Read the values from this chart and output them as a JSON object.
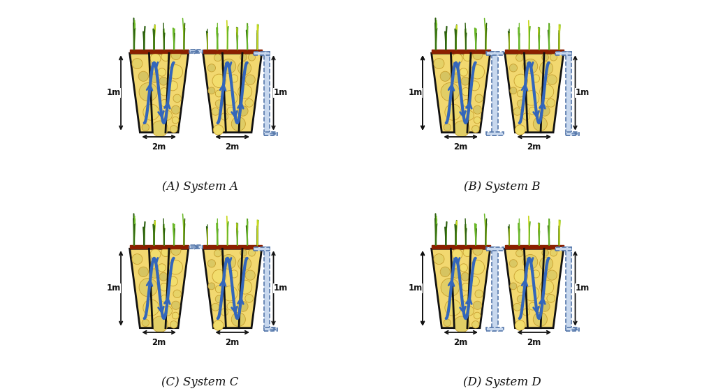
{
  "background_color": "#ffffff",
  "bed_fill": "#f2d870",
  "bed_outline": "#111111",
  "top_strip_color": "#8B2000",
  "pipe_color": "#c8d8ee",
  "pipe_edge_color": "#5577aa",
  "flow_color": "#3366bb",
  "dim_color": "#111111",
  "gravel_edge": "#c8a030",
  "plant_dark": "#2d6010",
  "plant_light": "#6ab828",
  "plant_yellow": "#c8d820",
  "systems": [
    "A",
    "B",
    "C",
    "D"
  ],
  "labels": [
    "(A) System A",
    "(B) System B",
    "(C) System C",
    "(D) System D"
  ]
}
